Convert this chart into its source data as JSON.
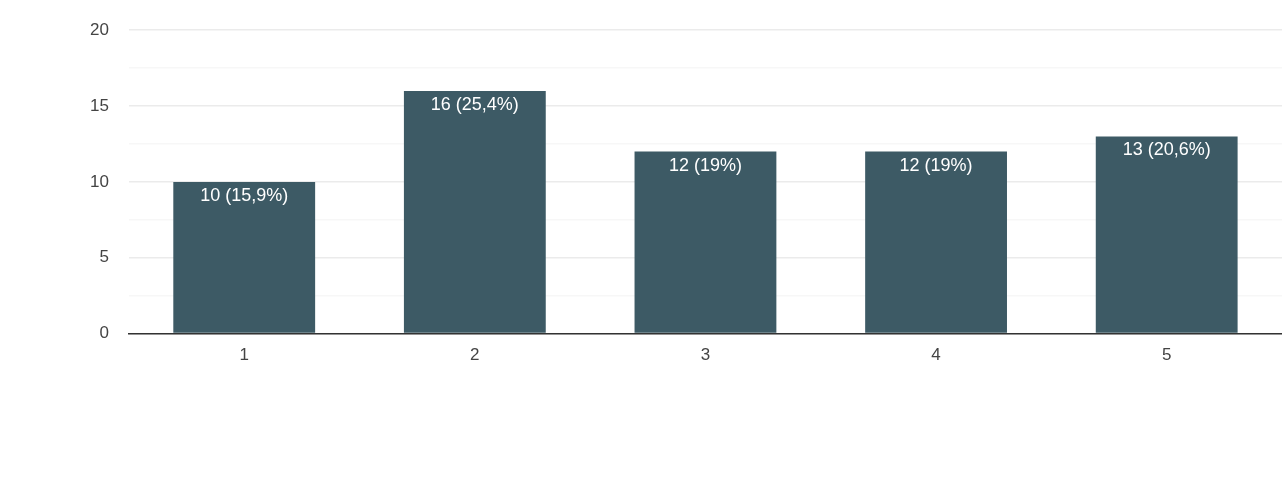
{
  "chart_data": {
    "type": "bar",
    "categories": [
      "1",
      "2",
      "3",
      "4",
      "5"
    ],
    "values": [
      10,
      16,
      12,
      12,
      13
    ],
    "color": "#3d5a65",
    "value_labels": [
      "10 (15,9%)",
      "16 (25,4%)",
      "12 (19%)",
      "12 (19%)",
      "13 (20,6%)"
    ],
    "ylim": [
      0,
      20
    ],
    "yticks": [
      0,
      {
        "value": 2.5,
        "label": null
      },
      5,
      {
        "value": 7.5,
        "label": null
      },
      10,
      {
        "value": 12.5,
        "label": null
      },
      15,
      {
        "value": 17.5,
        "label": null
      },
      20
    ],
    "grid": "y",
    "legend": false
  }
}
